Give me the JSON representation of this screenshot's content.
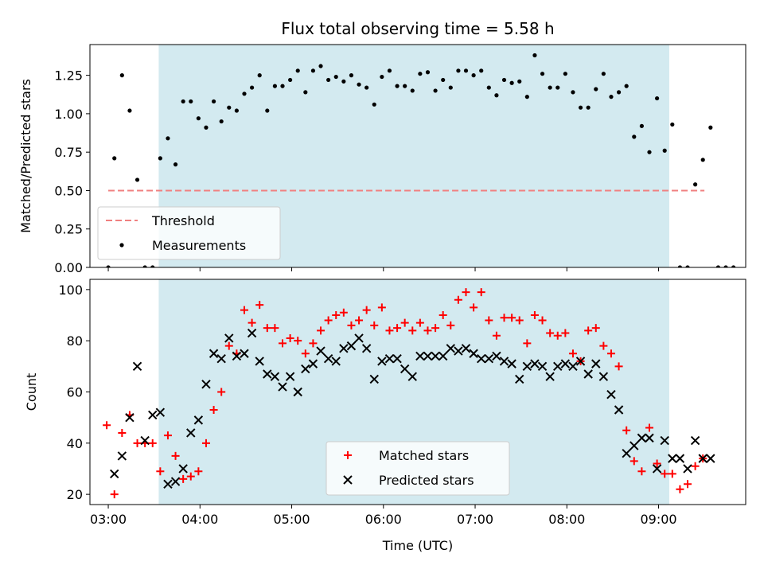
{
  "chart_data": {
    "title": "Flux total observing time = 5.58 h",
    "xlabel": "Time (UTC)",
    "x_axis": {
      "type": "time",
      "range": [
        "02:48",
        "09:57"
      ],
      "ticks": [
        "03:00",
        "04:00",
        "05:00",
        "06:00",
        "07:00",
        "08:00",
        "09:00"
      ]
    },
    "observing_window": {
      "start": "03:33",
      "end": "09:07",
      "color": "#d3eaf0"
    },
    "panels": [
      {
        "type": "scatter",
        "ylabel": "Matched/Predicted stars",
        "ylim": [
          0,
          1.45
        ],
        "yticks": [
          "0.00",
          "0.25",
          "0.50",
          "0.75",
          "1.00",
          "1.25"
        ],
        "threshold": {
          "name": "Threshold",
          "value": 0.5,
          "x_range": [
            "03:00",
            "09:30"
          ],
          "color": "#f08080",
          "style": "dashed"
        },
        "legend": {
          "position": "lower left",
          "entries": [
            "Threshold",
            "Measurements"
          ]
        },
        "series": [
          {
            "name": "Measurements",
            "color": "#000000",
            "marker": "dot",
            "x": [
              "03:00",
              "03:04",
              "03:09",
              "03:14",
              "03:19",
              "03:24",
              "03:29",
              "03:34",
              "03:39",
              "03:44",
              "03:49",
              "03:54",
              "03:59",
              "04:04",
              "04:09",
              "04:14",
              "04:19",
              "04:24",
              "04:29",
              "04:34",
              "04:39",
              "04:44",
              "04:49",
              "04:54",
              "04:59",
              "05:04",
              "05:09",
              "05:14",
              "05:19",
              "05:24",
              "05:29",
              "05:34",
              "05:39",
              "05:44",
              "05:49",
              "05:54",
              "05:59",
              "06:04",
              "06:09",
              "06:14",
              "06:19",
              "06:24",
              "06:29",
              "06:34",
              "06:39",
              "06:44",
              "06:49",
              "06:54",
              "06:59",
              "07:04",
              "07:09",
              "07:14",
              "07:19",
              "07:24",
              "07:29",
              "07:34",
              "07:39",
              "07:44",
              "07:49",
              "07:54",
              "07:59",
              "08:04",
              "08:09",
              "08:14",
              "08:19",
              "08:24",
              "08:29",
              "08:34",
              "08:39",
              "08:44",
              "08:49",
              "08:54",
              "08:59",
              "09:04",
              "09:09",
              "09:14",
              "09:19",
              "09:24",
              "09:29",
              "09:34",
              "09:39",
              "09:44",
              "09:49"
            ],
            "y": [
              0.0,
              0.71,
              1.25,
              1.02,
              0.57,
              0.0,
              0.0,
              0.71,
              0.84,
              0.67,
              1.08,
              1.08,
              0.97,
              0.91,
              1.08,
              0.95,
              1.04,
              1.02,
              1.13,
              1.17,
              1.25,
              1.02,
              1.18,
              1.18,
              1.22,
              1.28,
              1.14,
              1.28,
              1.31,
              1.22,
              1.24,
              1.21,
              1.25,
              1.19,
              1.17,
              1.06,
              1.24,
              1.28,
              1.18,
              1.18,
              1.15,
              1.26,
              1.27,
              1.15,
              1.22,
              1.17,
              1.28,
              1.28,
              1.25,
              1.28,
              1.17,
              1.12,
              1.22,
              1.2,
              1.21,
              1.11,
              1.38,
              1.26,
              1.17,
              1.17,
              1.26,
              1.14,
              1.04,
              1.04,
              1.16,
              1.26,
              1.11,
              1.14,
              1.18,
              0.85,
              0.92,
              0.75,
              1.1,
              0.76,
              0.93,
              0.0,
              0.0,
              0.54,
              0.7,
              0.91,
              0.0,
              0.0,
              0.0
            ]
          }
        ]
      },
      {
        "type": "scatter",
        "ylabel": "Count",
        "ylim": [
          16,
          104
        ],
        "yticks": [
          "20",
          "40",
          "60",
          "80",
          "100"
        ],
        "legend": {
          "position": "lower center",
          "entries": [
            "Matched stars",
            "Predicted stars"
          ]
        },
        "series": [
          {
            "name": "Matched stars",
            "color": "#ff0000",
            "marker": "plus",
            "x": [
              "02:59",
              "03:04",
              "03:09",
              "03:14",
              "03:19",
              "03:24",
              "03:29",
              "03:34",
              "03:39",
              "03:44",
              "03:49",
              "03:54",
              "03:59",
              "04:04",
              "04:09",
              "04:14",
              "04:19",
              "04:24",
              "04:29",
              "04:34",
              "04:39",
              "04:44",
              "04:49",
              "04:54",
              "04:59",
              "05:04",
              "05:09",
              "05:14",
              "05:19",
              "05:24",
              "05:29",
              "05:34",
              "05:39",
              "05:44",
              "05:49",
              "05:54",
              "05:59",
              "06:04",
              "06:09",
              "06:14",
              "06:19",
              "06:24",
              "06:29",
              "06:34",
              "06:39",
              "06:44",
              "06:49",
              "06:54",
              "06:59",
              "07:04",
              "07:09",
              "07:14",
              "07:19",
              "07:24",
              "07:29",
              "07:34",
              "07:39",
              "07:44",
              "07:49",
              "07:54",
              "07:59",
              "08:04",
              "08:09",
              "08:14",
              "08:19",
              "08:24",
              "08:29",
              "08:34",
              "08:39",
              "08:44",
              "08:49",
              "08:54",
              "08:59",
              "09:04",
              "09:09",
              "09:14",
              "09:19",
              "09:24",
              "09:29"
            ],
            "y": [
              47,
              20,
              44,
              51,
              40,
              40,
              40,
              29,
              43,
              35,
              26,
              27,
              29,
              40,
              53,
              60,
              78,
              75,
              92,
              87,
              94,
              85,
              85,
              79,
              81,
              80,
              75,
              79,
              84,
              88,
              90,
              91,
              86,
              88,
              92,
              86,
              93,
              84,
              85,
              87,
              84,
              87,
              84,
              85,
              90,
              86,
              96,
              99,
              93,
              99,
              88,
              82,
              89,
              89,
              88,
              79,
              90,
              88,
              83,
              82,
              83,
              75,
              72,
              84,
              85,
              78,
              75,
              70,
              45,
              33,
              29,
              46,
              32,
              28,
              28,
              22,
              24,
              31,
              34
            ]
          },
          {
            "name": "Predicted stars",
            "color": "#000000",
            "marker": "x",
            "x": [
              "03:04",
              "03:09",
              "03:14",
              "03:19",
              "03:24",
              "03:29",
              "03:34",
              "03:39",
              "03:44",
              "03:49",
              "03:54",
              "03:59",
              "04:04",
              "04:09",
              "04:14",
              "04:19",
              "04:24",
              "04:29",
              "04:34",
              "04:39",
              "04:44",
              "04:49",
              "04:54",
              "04:59",
              "05:04",
              "05:09",
              "05:14",
              "05:19",
              "05:24",
              "05:29",
              "05:34",
              "05:39",
              "05:44",
              "05:49",
              "05:54",
              "05:59",
              "06:04",
              "06:09",
              "06:14",
              "06:19",
              "06:24",
              "06:29",
              "06:34",
              "06:39",
              "06:44",
              "06:49",
              "06:54",
              "06:59",
              "07:04",
              "07:09",
              "07:14",
              "07:19",
              "07:24",
              "07:29",
              "07:34",
              "07:39",
              "07:44",
              "07:49",
              "07:54",
              "07:59",
              "08:04",
              "08:09",
              "08:14",
              "08:19",
              "08:24",
              "08:29",
              "08:34",
              "08:39",
              "08:44",
              "08:49",
              "08:54",
              "08:59",
              "09:04",
              "09:09",
              "09:14",
              "09:19",
              "09:24",
              "09:29",
              "09:34"
            ],
            "y": [
              28,
              35,
              50,
              70,
              41,
              51,
              52,
              24,
              25,
              30,
              44,
              49,
              63,
              75,
              73,
              81,
              74,
              75,
              83,
              72,
              67,
              66,
              62,
              66,
              60,
              69,
              71,
              76,
              73,
              72,
              77,
              78,
              81,
              77,
              65,
              72,
              73,
              73,
              69,
              66,
              74,
              74,
              74,
              74,
              77,
              76,
              77,
              75,
              73,
              73,
              74,
              72,
              71,
              65,
              70,
              71,
              70,
              66,
              70,
              71,
              70,
              72,
              67,
              71,
              66,
              59,
              53,
              36,
              39,
              42,
              42,
              30,
              41,
              34,
              34,
              30,
              41,
              34,
              34
            ]
          }
        ]
      }
    ]
  }
}
